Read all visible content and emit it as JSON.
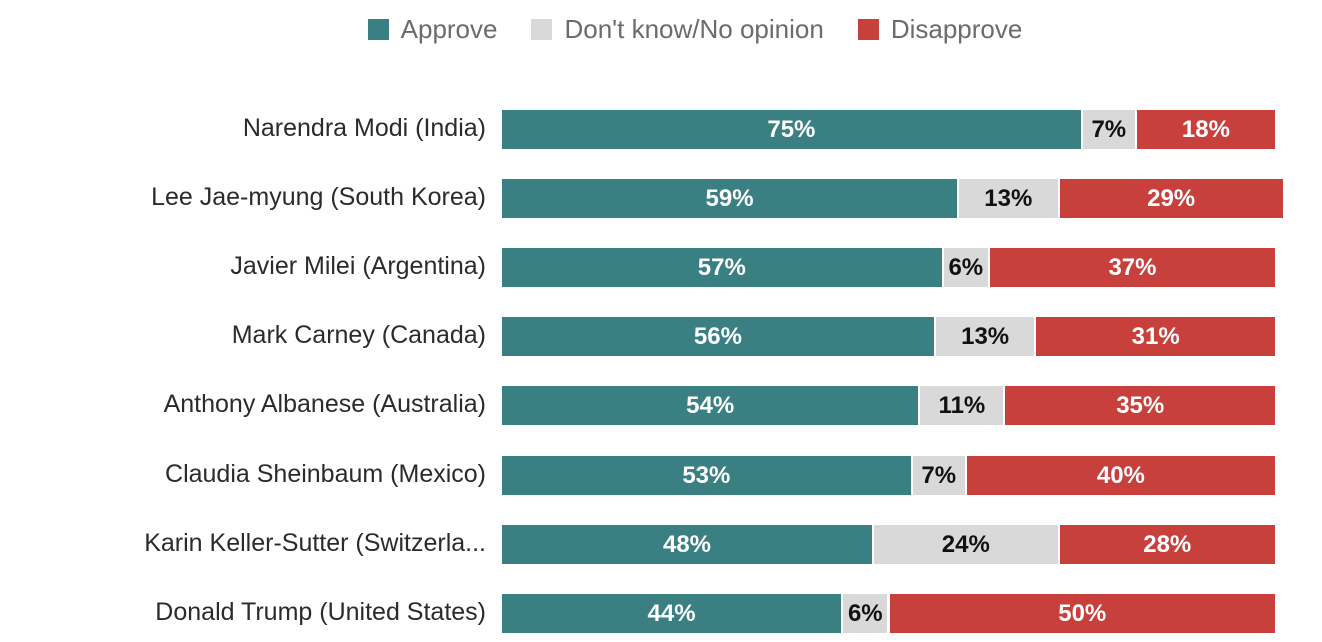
{
  "chart_data": {
    "type": "bar",
    "orientation": "horizontal",
    "stacked": true,
    "title": "",
    "xlabel": "",
    "ylabel": "",
    "xlim": [
      0,
      100
    ],
    "legend_position": "top",
    "legend": [
      "Approve",
      "Don't know/No opinion",
      "Disapprove"
    ],
    "colors": {
      "approve": "#3a8083",
      "dk": "#d9d9d9",
      "disapprove": "#c8403c"
    },
    "categories": [
      "Narendra Modi (India)",
      "Lee Jae-myung (South Korea)",
      "Javier Milei (Argentina)",
      "Mark Carney (Canada)",
      "Anthony Albanese (Australia)",
      "Claudia Sheinbaum (Mexico)",
      "Karin Keller-Sutter (Switzerla...",
      "Donald Trump (United States)"
    ],
    "series": [
      {
        "name": "Approve",
        "values": [
          75,
          59,
          57,
          56,
          54,
          53,
          48,
          44
        ],
        "labels": [
          "75%",
          "59%",
          "57%",
          "56%",
          "54%",
          "53%",
          "48%",
          "44%"
        ]
      },
      {
        "name": "Don't know/No opinion",
        "values": [
          7,
          13,
          6,
          13,
          11,
          7,
          24,
          6
        ],
        "labels": [
          "7%",
          "13%",
          "6%",
          "13%",
          "11%",
          "7%",
          "24%",
          "6%"
        ]
      },
      {
        "name": "Disapprove",
        "values": [
          18,
          29,
          37,
          31,
          35,
          40,
          28,
          50
        ],
        "labels": [
          "18%",
          "29%",
          "37%",
          "31%",
          "35%",
          "40%",
          "28%",
          "50%"
        ]
      }
    ]
  }
}
